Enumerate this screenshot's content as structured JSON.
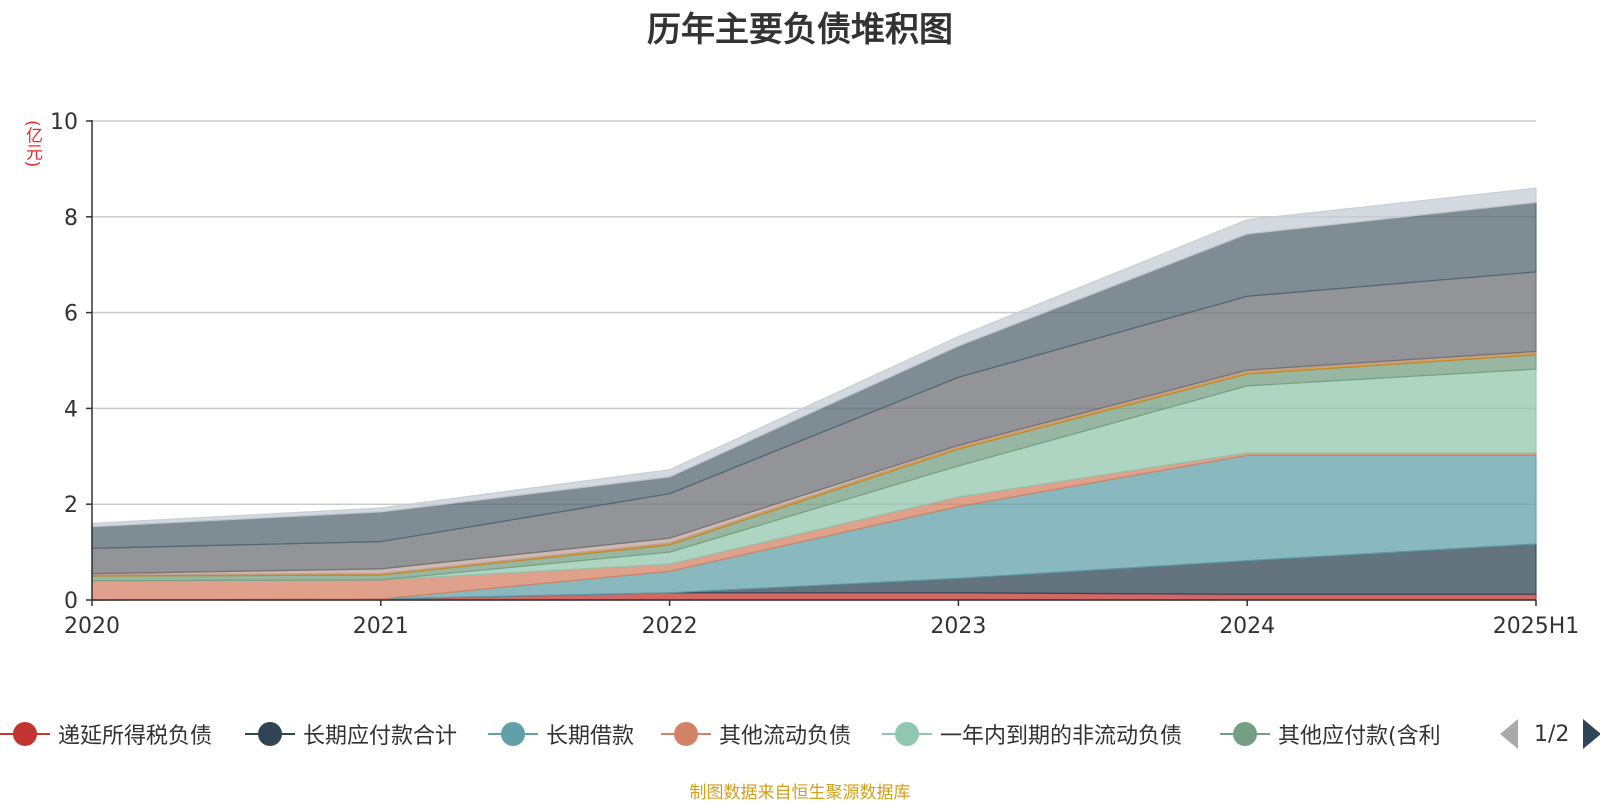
{
  "chart_data": {
    "type": "area",
    "stacked": true,
    "title": "历年主要负债堆积图",
    "unit_label": "(亿元)",
    "categories": [
      "2020",
      "2021",
      "2022",
      "2023",
      "2024",
      "2025H1"
    ],
    "ylim": [
      0,
      10
    ],
    "yticks": [
      0,
      2,
      4,
      6,
      8,
      10
    ],
    "grid": true,
    "series": [
      {
        "name": "递延所得税负债",
        "color": "#c23531",
        "values": [
          0.0,
          0.02,
          0.15,
          0.15,
          0.12,
          0.12
        ]
      },
      {
        "name": "长期应付款合计",
        "color": "#2f4554",
        "values": [
          0.0,
          0.0,
          0.0,
          0.3,
          0.7,
          1.05
        ]
      },
      {
        "name": "长期借款",
        "color": "#61a0a8",
        "values": [
          0.0,
          0.0,
          0.45,
          1.5,
          2.2,
          1.85
        ]
      },
      {
        "name": "其他流动负债",
        "color": "#d48265",
        "values": [
          0.4,
          0.4,
          0.15,
          0.2,
          0.05,
          0.05
        ]
      },
      {
        "name": "一年内到期的非流动负债",
        "color": "#91c7ae",
        "values": [
          0.0,
          0.0,
          0.25,
          0.65,
          1.4,
          1.75
        ]
      },
      {
        "name": "其他应付款(含利息和股利)",
        "color": "#749f83",
        "values": [
          0.1,
          0.1,
          0.15,
          0.35,
          0.25,
          0.3
        ]
      },
      {
        "name": "",
        "color": "#ca8622",
        "values": [
          0.03,
          0.03,
          0.04,
          0.05,
          0.05,
          0.05
        ]
      },
      {
        "name": "",
        "color": "#bda29a",
        "values": [
          0.02,
          0.1,
          0.1,
          0.03,
          0.03,
          0.02
        ]
      },
      {
        "name": "",
        "color": "#6e7074",
        "values": [
          0.53,
          0.57,
          0.93,
          1.42,
          1.54,
          1.66
        ]
      },
      {
        "name": "",
        "color": "#546570",
        "values": [
          0.45,
          0.62,
          0.35,
          0.65,
          1.3,
          1.45
        ]
      },
      {
        "name": "",
        "color": "#c4ccd3",
        "values": [
          0.07,
          0.08,
          0.15,
          0.2,
          0.3,
          0.3
        ]
      }
    ]
  },
  "legend": {
    "items": [
      {
        "label": "递延所得税负债",
        "color": "#c23531"
      },
      {
        "label": "长期应付款合计",
        "color": "#2f4554"
      },
      {
        "label": "长期借款",
        "color": "#61a0a8"
      },
      {
        "label": "其他流动负债",
        "color": "#d48265"
      },
      {
        "label": "一年内到期的非流动负债",
        "color": "#91c7ae"
      },
      {
        "label": "其他应付款(含利",
        "color": "#749f83"
      }
    ],
    "page_indicator": "1/2"
  },
  "source_note": "制图数据来自恒生聚源数据库"
}
